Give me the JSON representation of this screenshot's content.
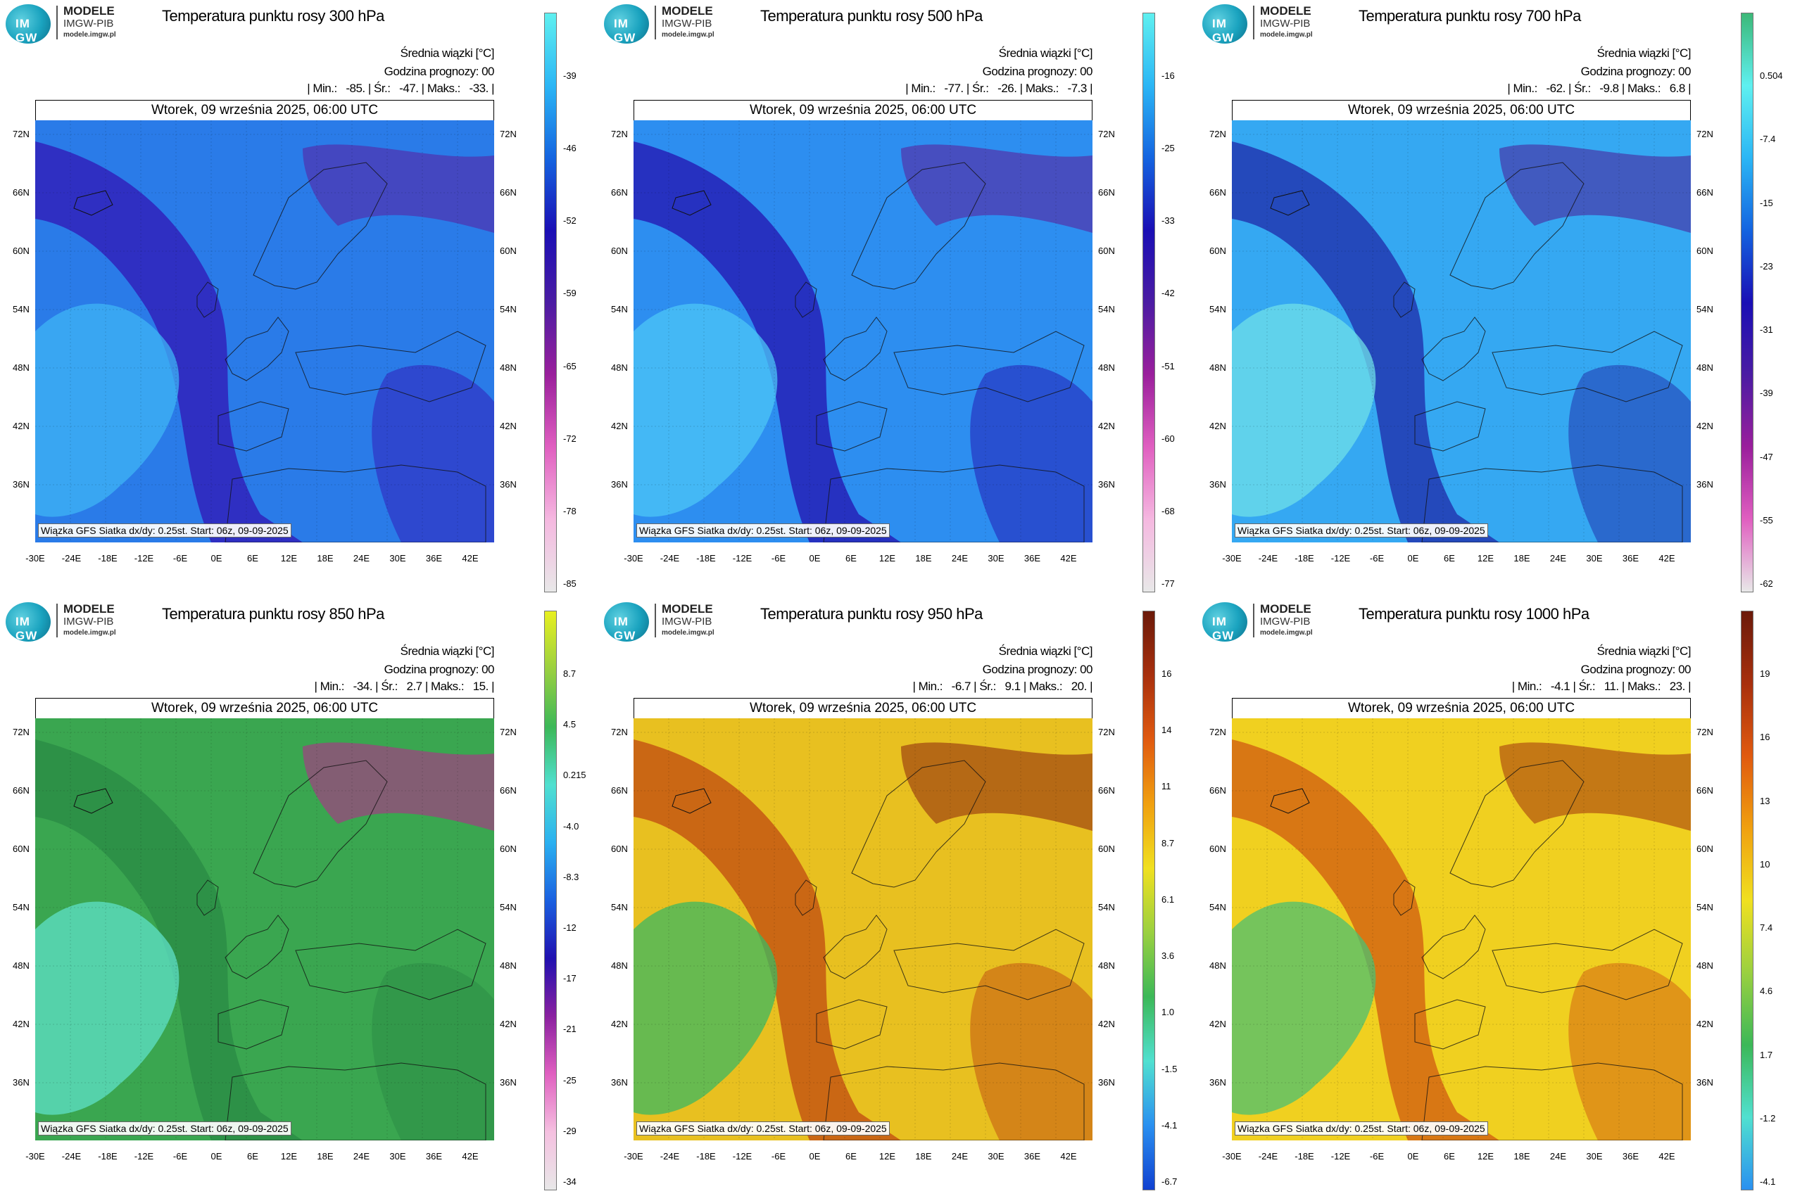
{
  "brand": {
    "line1": "MODELE",
    "line2": "IMGW-PIB",
    "line3": "modele.imgw.pl",
    "logo": "IM GW"
  },
  "common": {
    "info_label": "Średnia wiązki [°C]",
    "forecast_hour": "Godzina prognozy: 00",
    "date_header": "Wtorek, 09 września 2025, 06:00 UTC",
    "footer": "Wiązka GFS Siatka dx/dy: 0.25st. Start: 06z, 09-09-2025",
    "lat_labels": [
      "72N",
      "66N",
      "60N",
      "54N",
      "48N",
      "42N",
      "36N"
    ],
    "lon_labels": [
      "-30E",
      "-24E",
      "-18E",
      "-12E",
      "-6E",
      "0E",
      "6E",
      "12E",
      "18E",
      "24E",
      "30E",
      "36E",
      "42E"
    ]
  },
  "panels": [
    {
      "title": "Temperatura punktu rosy 300 hPa",
      "stats": "| Min.:   -85. | Śr.:   -47. | Maks.:   -33. |",
      "colorbar_labels": [
        "-39",
        "-46",
        "-52",
        "-59",
        "-65",
        "-72",
        "-78",
        "-85"
      ],
      "colorbar_colors": [
        "#5ff0f0",
        "#2bb6f5",
        "#1464e0",
        "#1a0fb5",
        "#4b1ca3",
        "#9a1f9c",
        "#e05fc0",
        "#f5b8e0",
        "#e8e8e8"
      ],
      "map_colors": {
        "base": "#2a7be8",
        "light": "#3fb4f5",
        "dark": "#3116b5",
        "purple": "#5a1d9e"
      }
    },
    {
      "title": "Temperatura punktu rosy 500 hPa",
      "stats": "| Min.:   -77. | Śr.:   -26. | Maks.:   -7.3 |",
      "colorbar_labels": [
        "-16",
        "-25",
        "-33",
        "-42",
        "-51",
        "-60",
        "-68",
        "-77"
      ],
      "colorbar_colors": [
        "#5ff0f0",
        "#2bb6f5",
        "#1464e0",
        "#1a0fb5",
        "#4b1ca3",
        "#9a1f9c",
        "#e05fc0",
        "#f5b8e0",
        "#e8e8e8"
      ],
      "map_colors": {
        "base": "#2d8ef0",
        "light": "#4cc6f7",
        "dark": "#2412b0",
        "purple": "#5c1a98"
      }
    },
    {
      "title": "Temperatura punktu rosy 700 hPa",
      "stats": "| Min.:   -62. | Śr.:   -9.8 | Maks.:   6.8 |",
      "colorbar_labels": [
        "0.504",
        "-7.4",
        "-15",
        "-23",
        "-31",
        "-39",
        "-47",
        "-55",
        "-62"
      ],
      "colorbar_colors": [
        "#3cb878",
        "#5ff0f0",
        "#2bb6f5",
        "#1464e0",
        "#1a0fb5",
        "#4b1ca3",
        "#9a1f9c",
        "#e05fc0",
        "#e8e8e8"
      ],
      "map_colors": {
        "base": "#35a8f2",
        "light": "#6fe0e8",
        "dark": "#1f2aa8",
        "purple": "#4a1a96"
      }
    },
    {
      "title": "Temperatura punktu rosy 850 hPa",
      "stats": "| Min.:   -34. | Śr.:   2.7 | Maks.:   15. |",
      "colorbar_labels": [
        "8.7",
        "4.5",
        "0.215",
        "-4.0",
        "-8.3",
        "-12",
        "-17",
        "-21",
        "-25",
        "-29",
        "-34"
      ],
      "colorbar_colors": [
        "#e8f020",
        "#9ad040",
        "#3cb858",
        "#50e0d0",
        "#2ab0f0",
        "#1a60e0",
        "#2010b0",
        "#8a20a0",
        "#e060c0",
        "#f5c0e0",
        "#e8e8e8"
      ],
      "map_colors": {
        "base": "#3aa650",
        "light": "#5fe0c8",
        "dark": "#2a8a44",
        "purple": "#c02090"
      }
    },
    {
      "title": "Temperatura punktu rosy 950 hPa",
      "stats": "| Min.:   -6.7 | Śr.:   9.1 | Maks.:   20. |",
      "colorbar_labels": [
        "16",
        "14",
        "11",
        "8.7",
        "6.1",
        "3.6",
        "1.0",
        "-1.5",
        "-4.1",
        "-6.7"
      ],
      "colorbar_colors": [
        "#6b1a0a",
        "#a8300e",
        "#e05a10",
        "#f0a010",
        "#f0e020",
        "#9ad040",
        "#3cb858",
        "#50e0d0",
        "#2a90f0",
        "#1040d0"
      ],
      "map_colors": {
        "base": "#e8c020",
        "light": "#3cb860",
        "dark": "#c04a10",
        "purple": "#8a200c"
      }
    },
    {
      "title": "Temperatura punktu rosy 1000 hPa",
      "stats": "| Min.:   -4.1 | Śr.:   11. | Maks.:   23. |",
      "colorbar_labels": [
        "19",
        "16",
        "13",
        "10",
        "7.4",
        "4.6",
        "1.7",
        "-1.2",
        "-4.1"
      ],
      "colorbar_colors": [
        "#6b1a0a",
        "#a8300e",
        "#e05a10",
        "#f0a010",
        "#f0e020",
        "#9ad040",
        "#3cb858",
        "#50e0d0",
        "#2a90f0"
      ],
      "map_colors": {
        "base": "#f0d020",
        "light": "#4cc070",
        "dark": "#d05a10",
        "purple": "#a0300c"
      }
    }
  ]
}
